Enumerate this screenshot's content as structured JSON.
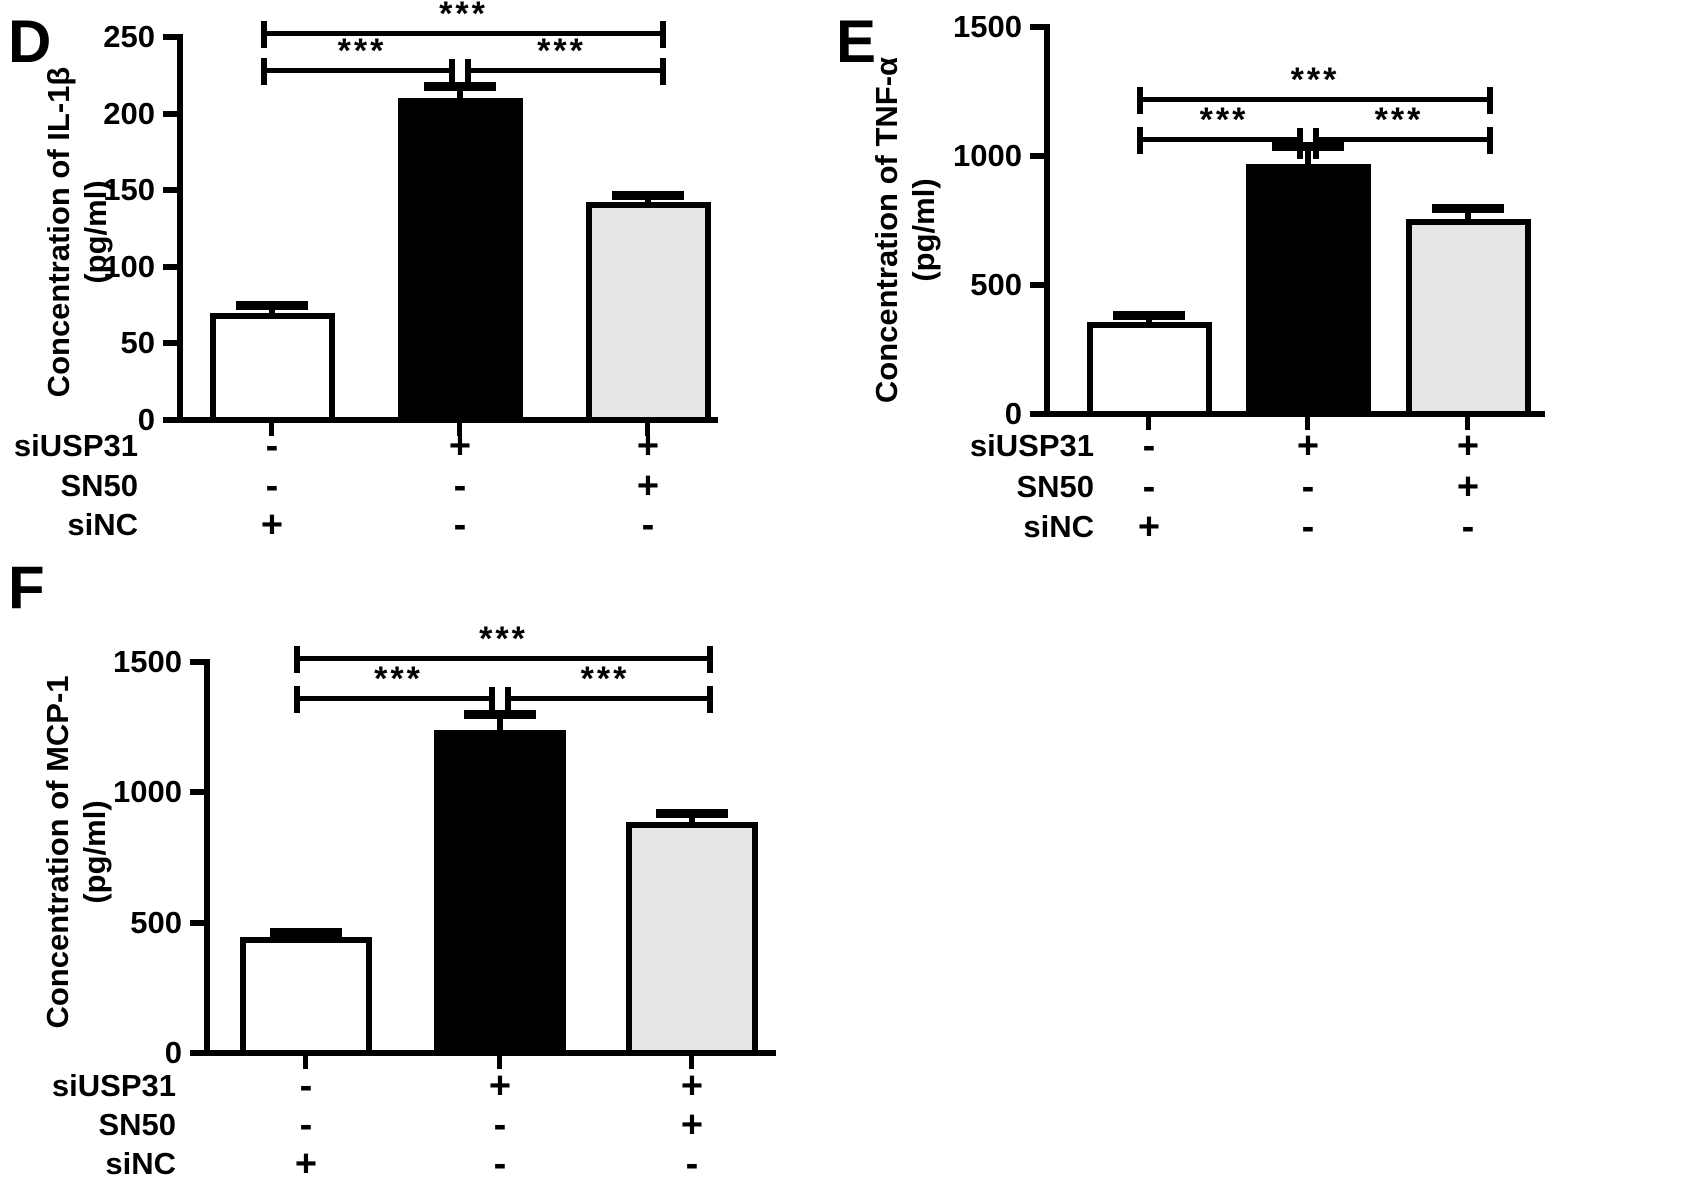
{
  "figure_title": "",
  "chart_data": [
    {
      "panel_label": "D",
      "type": "bar",
      "ylabel_line1": "Concentration of IL-1β",
      "ylabel_line2": "(pg/ml)",
      "ylim": [
        0,
        250
      ],
      "yticks": [
        0,
        50,
        100,
        150,
        200,
        250
      ],
      "categories": [
        "siNC",
        "siUSP31",
        "siUSP31 + SN50"
      ],
      "values": [
        70,
        210,
        142
      ],
      "errors": [
        5,
        8,
        5
      ],
      "bar_fills": [
        "#ffffff",
        "#000000",
        "#e6e6e6"
      ],
      "bar_border": "#000000",
      "significance": [
        {
          "pair": "bar1-bar3",
          "label": "***"
        },
        {
          "pair": "bar1-bar2",
          "label": "***"
        },
        {
          "pair": "bar2-bar3",
          "label": "***"
        }
      ],
      "condition_rows": [
        {
          "label": "siUSP31",
          "values": [
            "-",
            "+",
            "+"
          ]
        },
        {
          "label": "SN50",
          "values": [
            "-",
            "-",
            "+"
          ]
        },
        {
          "label": "siNC",
          "values": [
            "+",
            "-",
            "-"
          ]
        }
      ]
    },
    {
      "panel_label": "E",
      "type": "bar",
      "ylabel_line1": "Concentration of TNF-α",
      "ylabel_line2": "(pg/ml)",
      "ylim": [
        0,
        1500
      ],
      "yticks": [
        0,
        500,
        1000,
        1500
      ],
      "categories": [
        "siNC",
        "siUSP31",
        "siUSP31 + SN50"
      ],
      "values": [
        355,
        970,
        755
      ],
      "errors": [
        30,
        70,
        45
      ],
      "bar_fills": [
        "#ffffff",
        "#000000",
        "#e6e6e6"
      ],
      "bar_border": "#000000",
      "significance": [
        {
          "pair": "bar1-bar3",
          "label": "***"
        },
        {
          "pair": "bar1-bar2",
          "label": "***"
        },
        {
          "pair": "bar2-bar3",
          "label": "***"
        }
      ],
      "condition_rows": [
        {
          "label": "siUSP31",
          "values": [
            "-",
            "+",
            "+"
          ]
        },
        {
          "label": "SN50",
          "values": [
            "-",
            "-",
            "+"
          ]
        },
        {
          "label": "siNC",
          "values": [
            "+",
            "-",
            "-"
          ]
        }
      ]
    },
    {
      "panel_label": "F",
      "type": "bar",
      "ylabel_line1": "Concentration of MCP-1",
      "ylabel_line2": "(pg/ml)",
      "ylim": [
        0,
        1500
      ],
      "yticks": [
        0,
        500,
        1000,
        1500
      ],
      "categories": [
        "siNC",
        "siUSP31",
        "siUSP31 + SN50"
      ],
      "values": [
        445,
        1240,
        885
      ],
      "errors": [
        20,
        62,
        35
      ],
      "bar_fills": [
        "#ffffff",
        "#000000",
        "#e6e6e6"
      ],
      "bar_border": "#000000",
      "significance": [
        {
          "pair": "bar1-bar3",
          "label": "***"
        },
        {
          "pair": "bar1-bar2",
          "label": "***"
        },
        {
          "pair": "bar2-bar3",
          "label": "***"
        }
      ],
      "condition_rows": [
        {
          "label": "siUSP31",
          "values": [
            "-",
            "+",
            "+"
          ]
        },
        {
          "label": "SN50",
          "values": [
            "-",
            "-",
            "+"
          ]
        },
        {
          "label": "siNC",
          "values": [
            "+",
            "-",
            "-"
          ]
        }
      ]
    }
  ]
}
